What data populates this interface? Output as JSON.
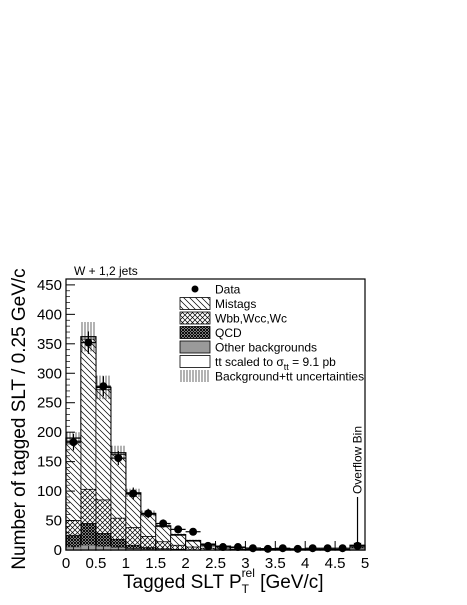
{
  "chart_data": {
    "type": "bar",
    "subtype": "stacked-histogram",
    "annotation": "W + 1,2 jets",
    "xlabel_main": "Tagged SLT P",
    "xlabel_sub": "T",
    "xlabel_sup": "rel",
    "xlabel_unit": " [GeV/c]",
    "ylabel": "Number of tagged SLT / 0.25 GeV/c",
    "xlim": [
      0,
      5
    ],
    "ylim": [
      0,
      460
    ],
    "x_ticks": [
      "0",
      "0.5",
      "1",
      "1.5",
      "2",
      "2.5",
      "3",
      "3.5",
      "4",
      "4.5",
      "5"
    ],
    "y_ticks": [
      "0",
      "50",
      "100",
      "150",
      "200",
      "250",
      "300",
      "350",
      "400",
      "450"
    ],
    "bin_width": 0.25,
    "bin_edges_start": [
      0,
      0.25,
      0.5,
      0.75,
      1.0,
      1.25,
      1.5,
      1.75,
      2.0,
      2.25,
      2.5,
      2.75,
      3.0,
      3.25,
      3.5,
      3.75,
      4.0,
      4.25,
      4.5,
      4.75
    ],
    "stack": {
      "other": [
        5,
        8,
        6,
        4,
        2,
        1,
        1,
        0.5,
        0.3,
        0.2,
        0.1,
        0.1,
        0,
        0,
        0,
        0,
        0,
        0,
        0,
        3
      ],
      "qcd": [
        25,
        45,
        28,
        18,
        8,
        4,
        2,
        1,
        0.5,
        0.3,
        0.2,
        0.1,
        0.1,
        0,
        0,
        0,
        0,
        0,
        0,
        3
      ],
      "wbb": [
        50,
        103,
        85,
        54,
        38,
        23,
        14,
        8,
        5,
        3,
        2,
        1.5,
        1,
        1,
        0.5,
        0.5,
        0.3,
        0.3,
        0.3,
        5
      ],
      "mistags": [
        185,
        358,
        272,
        162,
        95,
        60,
        40,
        25,
        15,
        9,
        6,
        4,
        3,
        2,
        1.5,
        1,
        1,
        1,
        0.5,
        7
      ],
      "ttbar": [
        190,
        362,
        276,
        165,
        97,
        62,
        41,
        26,
        16,
        10,
        6.5,
        4.5,
        3.2,
        2.2,
        1.8,
        1.2,
        1.1,
        1,
        0.7,
        8
      ]
    },
    "uncertainty_band": [
      10,
      25,
      20,
      12,
      7,
      5,
      3,
      2,
      1.5,
      1,
      0.8,
      0.6,
      0.5,
      0.4,
      0.3,
      0.3,
      0.3,
      0.3,
      0.3,
      1
    ],
    "data_points": {
      "x": [
        0.125,
        0.375,
        0.625,
        0.875,
        1.125,
        1.375,
        1.625,
        1.875,
        2.125,
        2.375,
        2.625,
        2.875,
        3.125,
        3.375,
        3.625,
        3.875,
        4.125,
        4.375,
        4.625,
        4.875
      ],
      "y": [
        183,
        352,
        278,
        156,
        96,
        62,
        45,
        35,
        31,
        7,
        5,
        5,
        3,
        2,
        3,
        2,
        3,
        3,
        3,
        7
      ],
      "err": [
        14,
        19,
        17,
        12,
        10,
        8,
        7,
        6,
        6,
        3,
        2,
        2,
        2,
        1.5,
        2,
        1.5,
        2,
        2,
        2,
        3
      ]
    },
    "overflow_label": "Overflow Bin",
    "legend_position": "top-right",
    "legend": [
      {
        "key": "data",
        "label": "Data"
      },
      {
        "key": "mistags",
        "label": "Mistags"
      },
      {
        "key": "wbb",
        "label": "Wbb,Wcc,Wc"
      },
      {
        "key": "qcd",
        "label": "QCD"
      },
      {
        "key": "other",
        "label": "Other backgrounds"
      },
      {
        "key": "ttbar",
        "label": "tt scaled to σ  = 9.1 pb",
        "sigma_sub": "tt"
      },
      {
        "key": "uncert",
        "label": "Background+tt uncertainties"
      }
    ],
    "colors": {
      "other": "#9a9a9a",
      "qcd": "#000000",
      "frame": "#000000"
    }
  }
}
